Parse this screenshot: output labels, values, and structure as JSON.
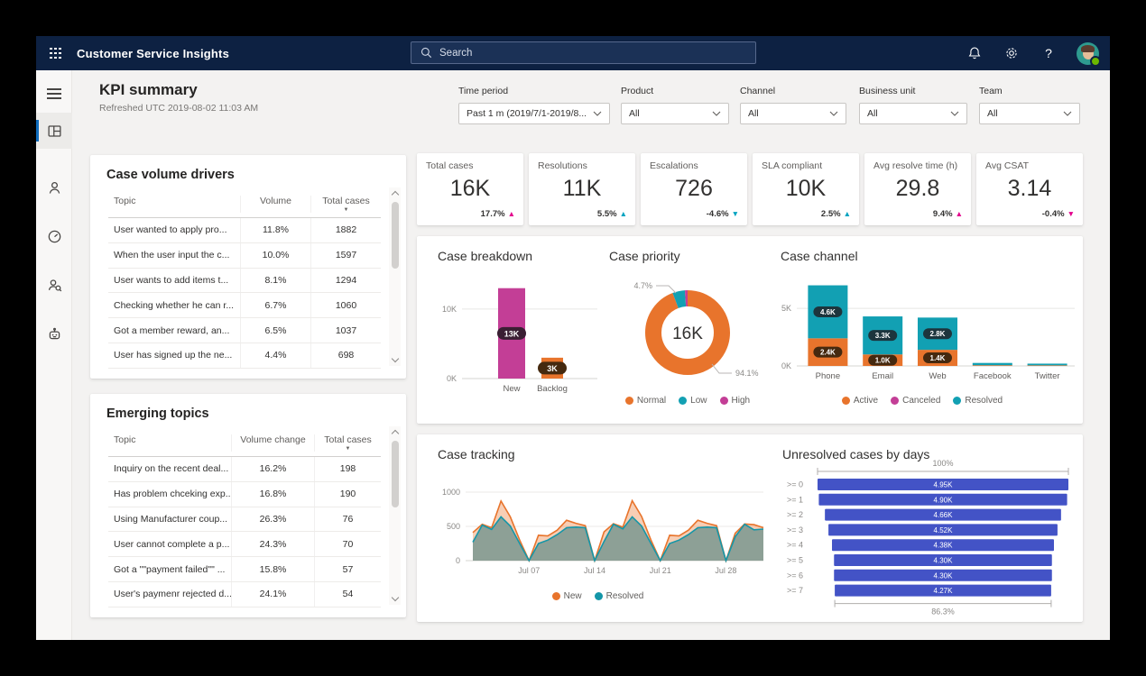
{
  "app": {
    "title": "Customer Service Insights",
    "search_placeholder": "Search"
  },
  "topbar_icons": [
    "notifications-bell",
    "settings-gear",
    "help-question",
    "user-account"
  ],
  "sidebar_icons": [
    "hamburger-menu",
    "workspace-dashboard",
    "customer",
    "dashboard-gauge",
    "agent-search",
    "virtual-agent-bot"
  ],
  "page": {
    "title": "KPI summary",
    "refreshed": "Refreshed UTC 2019-08-02 11:03 AM"
  },
  "filters": [
    {
      "label": "Time period",
      "value": "Past 1 m (2019/7/1-2019/8..."
    },
    {
      "label": "Product",
      "value": "All"
    },
    {
      "label": "Channel",
      "value": "All"
    },
    {
      "label": "Business unit",
      "value": "All"
    },
    {
      "label": "Team",
      "value": "All"
    }
  ],
  "kpis": [
    {
      "label": "Total cases",
      "value": "16K",
      "delta": "17.7%",
      "direction": "up",
      "color": "#E3008C"
    },
    {
      "label": "Resolutions",
      "value": "11K",
      "delta": "5.5%",
      "direction": "up",
      "color": "#00A3C0"
    },
    {
      "label": "Escalations",
      "value": "726",
      "delta": "-4.6%",
      "direction": "down",
      "color": "#00A3C0"
    },
    {
      "label": "SLA compliant",
      "value": "10K",
      "delta": "2.5%",
      "direction": "up",
      "color": "#00A3C0"
    },
    {
      "label": "Avg resolve time (h)",
      "value": "29.8",
      "delta": "9.4%",
      "direction": "up",
      "color": "#E3008C"
    },
    {
      "label": "Avg CSAT",
      "value": "3.14",
      "delta": "-0.4%",
      "direction": "down",
      "color": "#E3008C"
    }
  ],
  "tables": {
    "case_volume_drivers": {
      "title": "Case volume drivers",
      "columns": [
        "Topic",
        "Volume",
        "Total cases"
      ],
      "sort_column": "Total cases",
      "rows": [
        [
          "User wanted to apply pro...",
          "11.8%",
          "1882"
        ],
        [
          "When the user input the c...",
          "10.0%",
          "1597"
        ],
        [
          "User wants to add items t...",
          "8.1%",
          "1294"
        ],
        [
          "Checking whether he can r...",
          "6.7%",
          "1060"
        ],
        [
          "Got a member reward, an...",
          "6.5%",
          "1037"
        ],
        [
          "User has signed up the ne...",
          "4.4%",
          "698"
        ]
      ]
    },
    "emerging_topics": {
      "title": "Emerging topics",
      "columns": [
        "Topic",
        "Volume change",
        "Total cases"
      ],
      "sort_column": "Total cases",
      "rows": [
        [
          "Inquiry on the recent deal...",
          "16.2%",
          "198"
        ],
        [
          "Has problem chceking exp...",
          "16.8%",
          "190"
        ],
        [
          "Using Manufacturer coup...",
          "26.3%",
          "76"
        ],
        [
          "User cannot complete a p...",
          "24.3%",
          "70"
        ],
        [
          "Got a \"\"payment failed\"\" ...",
          "15.8%",
          "57"
        ],
        [
          "User's paymenr rejected d...",
          "24.1%",
          "54"
        ]
      ]
    }
  },
  "chart_data": [
    {
      "id": "case_breakdown",
      "type": "bar",
      "title": "Case breakdown",
      "categories": [
        "New",
        "Backlog"
      ],
      "values": [
        13000,
        3000
      ],
      "value_labels": [
        "13K",
        "3K"
      ],
      "bar_colors": [
        "#C33E96",
        "#E8742C"
      ],
      "label_bg": [
        "#3A1F33",
        "#45290F"
      ],
      "ylim": [
        0,
        14000
      ],
      "yticks": [
        {
          "value": 0,
          "label": "0K"
        },
        {
          "value": 10000,
          "label": "10K"
        }
      ]
    },
    {
      "id": "case_priority",
      "type": "donut",
      "title": "Case priority",
      "center_label": "16K",
      "slices": [
        {
          "name": "Normal",
          "pct": 94.1,
          "color": "#E8742C"
        },
        {
          "name": "Low",
          "pct": 4.7,
          "color": "#12A0B3"
        },
        {
          "name": "High",
          "pct": 1.2,
          "color": "#C33E96"
        }
      ],
      "callouts": {
        "low": "4.7%",
        "normal": "94.1%"
      },
      "legend_position": "bottom"
    },
    {
      "id": "case_channel",
      "type": "stacked_bar",
      "title": "Case channel",
      "categories": [
        "Phone",
        "Email",
        "Web",
        "Facebook",
        "Twitter"
      ],
      "series": [
        {
          "name": "Active",
          "color": "#E8742C",
          "values": [
            2400,
            1000,
            1400,
            60,
            50
          ],
          "value_labels": [
            "2.4K",
            "1.0K",
            "1.4K",
            "",
            ""
          ],
          "label_bg": "#45290F"
        },
        {
          "name": "Canceled",
          "color": "#C33E96",
          "values": [
            0,
            0,
            0,
            0,
            0
          ],
          "value_labels": [
            "",
            "",
            "",
            "",
            ""
          ],
          "label_bg": "#3A1F33"
        },
        {
          "name": "Resolved",
          "color": "#12A0B3",
          "values": [
            4600,
            3300,
            2800,
            200,
            150
          ],
          "value_labels": [
            "4.6K",
            "3.3K",
            "2.8K",
            "",
            ""
          ],
          "label_bg": "#1D353D"
        }
      ],
      "ylim": [
        0,
        7200
      ],
      "yticks": [
        {
          "value": 0,
          "label": "0K"
        },
        {
          "value": 5000,
          "label": "5K"
        }
      ],
      "legend_position": "bottom"
    },
    {
      "id": "case_tracking",
      "type": "area",
      "title": "Case tracking",
      "x_ticks": [
        {
          "index": 6,
          "label": "Jul 07"
        },
        {
          "index": 13,
          "label": "Jul 14"
        },
        {
          "index": 20,
          "label": "Jul 21"
        },
        {
          "index": 27,
          "label": "Jul 28"
        }
      ],
      "ylim": [
        0,
        1000
      ],
      "yticks": [
        0,
        500,
        1000
      ],
      "series": [
        {
          "name": "New",
          "color": "#E8742C",
          "fill": "rgba(232,116,44,0.35)",
          "values": [
            410,
            530,
            480,
            870,
            640,
            300,
            0,
            370,
            360,
            445,
            590,
            545,
            510,
            0,
            420,
            540,
            490,
            875,
            645,
            300,
            0,
            370,
            360,
            445,
            590,
            545,
            510,
            0,
            400,
            535,
            525,
            480
          ]
        },
        {
          "name": "Resolved",
          "color": "#1496A8",
          "fill": "rgba(122,152,144,0.85)",
          "values": [
            270,
            520,
            455,
            640,
            505,
            250,
            0,
            250,
            300,
            380,
            480,
            490,
            480,
            0,
            280,
            530,
            465,
            640,
            505,
            250,
            0,
            250,
            300,
            380,
            480,
            490,
            480,
            0,
            350,
            530,
            450,
            460
          ]
        }
      ],
      "legend_position": "bottom"
    },
    {
      "id": "unresolved_by_days",
      "type": "funnel",
      "title": "Unresolved cases by days",
      "categories": [
        ">= 0",
        ">= 1",
        ">= 2",
        ">= 3",
        ">= 4",
        ">= 5",
        ">= 6",
        ">= 7"
      ],
      "values": [
        4950,
        4900,
        4660,
        4520,
        4380,
        4300,
        4300,
        4270
      ],
      "value_labels": [
        "4.95K",
        "4.90K",
        "4.66K",
        "4.52K",
        "4.38K",
        "4.30K",
        "4.30K",
        "4.27K"
      ],
      "top_label": "100%",
      "bottom_label": "86.3%",
      "color": "#4353C6"
    }
  ]
}
